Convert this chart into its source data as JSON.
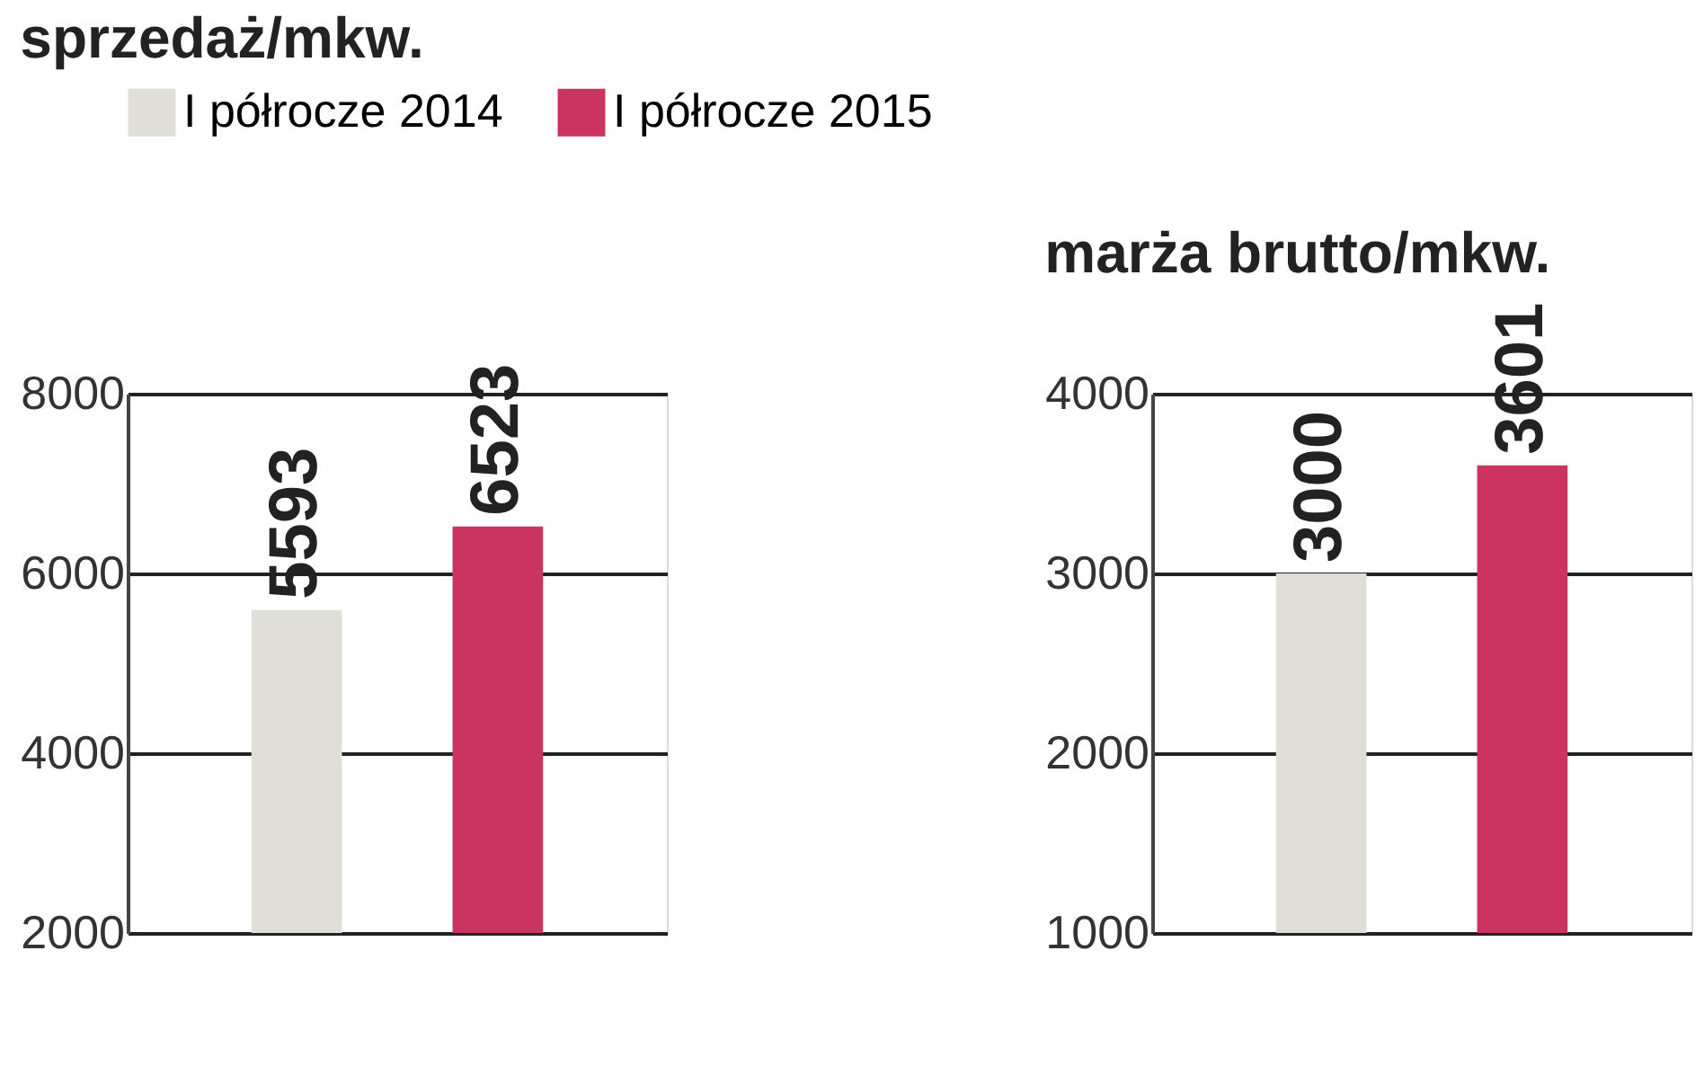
{
  "chart_data": [
    {
      "type": "bar",
      "title": "sprzedaż/mkw.",
      "categories": [
        null
      ],
      "series": [
        {
          "name": "I półrocze 2014",
          "color": "#dfdfd8",
          "values": [
            5593
          ]
        },
        {
          "name": "I półrocze 2015",
          "color": "#cc3460",
          "values": [
            6523
          ]
        }
      ],
      "ylim": [
        2000,
        8000
      ],
      "yticks": [
        {
          "value": 2000,
          "label": "2000"
        },
        {
          "value": 4000,
          "label": "4000"
        },
        {
          "value": 6000,
          "label": "6000"
        },
        {
          "value": 8000,
          "label": "8000"
        }
      ],
      "grid": "y",
      "legend": "top",
      "data_labels": true,
      "tick_labels": "y"
    },
    {
      "type": "bar",
      "title": "marża brutto/mkw.",
      "categories": [
        null
      ],
      "series": [
        {
          "color": "#dfdfd8",
          "values": [
            3000
          ]
        },
        {
          "color": "#cc3460",
          "values": [
            3601
          ]
        }
      ],
      "ylim": [
        1000,
        4000
      ],
      "yticks": [
        {
          "value": 1000,
          "label": "1000"
        },
        {
          "value": 2000,
          "label": "2000"
        },
        {
          "value": 3000,
          "label": "3000"
        },
        {
          "value": 4000,
          "label": "4000"
        }
      ],
      "grid": "y",
      "data_labels": true,
      "tick_labels": "y"
    }
  ]
}
